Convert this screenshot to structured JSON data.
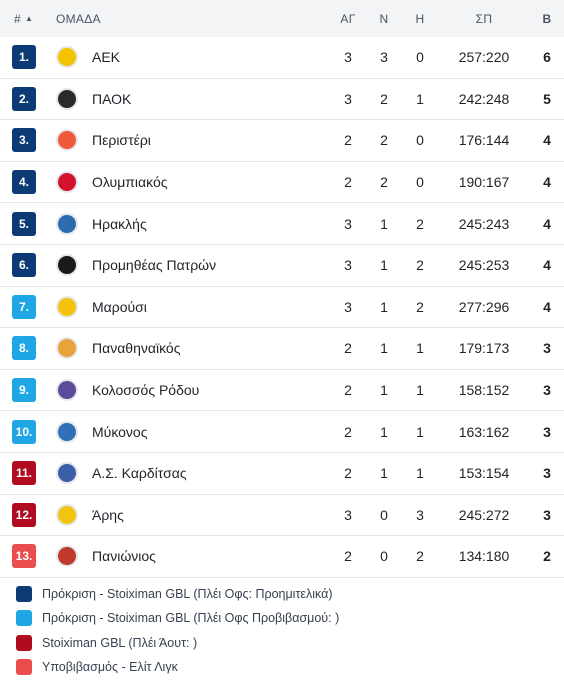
{
  "header": {
    "rank": "#",
    "team": "ΟΜΑΔΑ",
    "played": "ΑΓ",
    "wins": "Ν",
    "losses": "Η",
    "points_for_against": "ΣΠ",
    "points": "Β"
  },
  "colors": {
    "playoffs": "#0b3a74",
    "playoffs_qualifying": "#1ea7e4",
    "playout": "#b00b1e",
    "relegation": "#ea4d4d"
  },
  "rows": [
    {
      "rank": "1.",
      "team": "ΑΕΚ",
      "played": "3",
      "wins": "3",
      "losses": "0",
      "sp": "257:220",
      "points": "6",
      "zone": "#0b3a74",
      "logo_color": "#f3c300",
      "logo_icon": "aek-logo-icon"
    },
    {
      "rank": "2.",
      "team": "ΠΑΟΚ",
      "played": "3",
      "wins": "2",
      "losses": "1",
      "sp": "242:248",
      "points": "5",
      "zone": "#0b3a74",
      "logo_color": "#2a2a2a",
      "logo_icon": "paok-logo-icon"
    },
    {
      "rank": "3.",
      "team": "Περιστέρι",
      "played": "2",
      "wins": "2",
      "losses": "0",
      "sp": "176:144",
      "points": "4",
      "zone": "#0b3a74",
      "logo_color": "#f05a3a",
      "logo_icon": "peristeri-logo-icon"
    },
    {
      "rank": "4.",
      "team": "Ολυμπιακός",
      "played": "2",
      "wins": "2",
      "losses": "0",
      "sp": "190:167",
      "points": "4",
      "zone": "#0b3a74",
      "logo_color": "#d3122b",
      "logo_icon": "olympiacos-logo-icon"
    },
    {
      "rank": "5.",
      "team": "Ηρακλής",
      "played": "3",
      "wins": "1",
      "losses": "2",
      "sp": "245:243",
      "points": "4",
      "zone": "#0b3a74",
      "logo_color": "#2b6cb0",
      "logo_icon": "iraklis-logo-icon"
    },
    {
      "rank": "6.",
      "team": "Προμηθέας Πατρών",
      "played": "3",
      "wins": "1",
      "losses": "2",
      "sp": "245:253",
      "points": "4",
      "zone": "#0b3a74",
      "logo_color": "#1a1a1a",
      "logo_icon": "promitheas-logo-icon"
    },
    {
      "rank": "7.",
      "team": "Μαρούσι",
      "played": "3",
      "wins": "1",
      "losses": "2",
      "sp": "277:296",
      "points": "4",
      "zone": "#1ea7e4",
      "logo_color": "#f4c20d",
      "logo_icon": "maroussi-logo-icon"
    },
    {
      "rank": "8.",
      "team": "Παναθηναϊκός",
      "played": "2",
      "wins": "1",
      "losses": "1",
      "sp": "179:173",
      "points": "3",
      "zone": "#1ea7e4",
      "logo_color": "#e8a33a",
      "logo_icon": "panathinaikos-logo-icon"
    },
    {
      "rank": "9.",
      "team": "Κολοσσός Ρόδου",
      "played": "2",
      "wins": "1",
      "losses": "1",
      "sp": "158:152",
      "points": "3",
      "zone": "#1ea7e4",
      "logo_color": "#5b4b9a",
      "logo_icon": "kolossos-logo-icon"
    },
    {
      "rank": "10.",
      "team": "Μύκονος",
      "played": "2",
      "wins": "1",
      "losses": "1",
      "sp": "163:162",
      "points": "3",
      "zone": "#1ea7e4",
      "logo_color": "#2f6fb5",
      "logo_icon": "mykonos-logo-icon"
    },
    {
      "rank": "11.",
      "team": "Α.Σ. Καρδίτσας",
      "played": "2",
      "wins": "1",
      "losses": "1",
      "sp": "153:154",
      "points": "3",
      "zone": "#b00b1e",
      "logo_color": "#3a5fa8",
      "logo_icon": "karditsa-logo-icon"
    },
    {
      "rank": "12.",
      "team": "Άρης",
      "played": "3",
      "wins": "0",
      "losses": "3",
      "sp": "245:272",
      "points": "3",
      "zone": "#b00b1e",
      "logo_color": "#f1c40f",
      "logo_icon": "aris-logo-icon"
    },
    {
      "rank": "13.",
      "team": "Πανιώνιος",
      "played": "2",
      "wins": "0",
      "losses": "2",
      "sp": "134:180",
      "points": "2",
      "zone": "#ea4d4d",
      "logo_color": "#c0392b",
      "logo_icon": "panionios-logo-icon"
    }
  ],
  "legend": [
    {
      "label": "Πρόκριση - Stoiximan GBL (Πλέι Οφς: Προημιτελικά)",
      "color": "#0b3a74"
    },
    {
      "label": "Πρόκριση - Stoiximan GBL (Πλέι Οφς Προβιβασμού: )",
      "color": "#1ea7e4"
    },
    {
      "label": "Stoiximan GBL (Πλέι Άουτ: )",
      "color": "#b00b1e"
    },
    {
      "label": "Υποβιβασμός - Ελίτ Λιγκ",
      "color": "#ea4d4d"
    }
  ]
}
